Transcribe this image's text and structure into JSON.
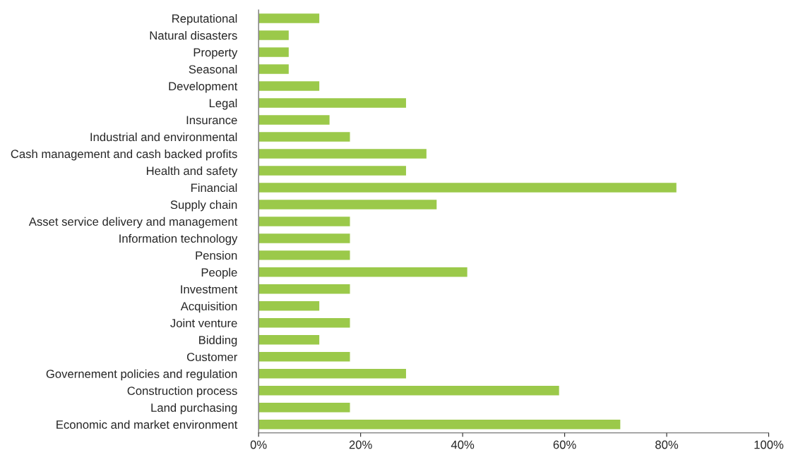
{
  "chart_data": {
    "type": "bar",
    "orientation": "horizontal",
    "categories": [
      "Reputational",
      "Natural disasters",
      "Property",
      "Seasonal",
      "Development",
      "Legal",
      "Insurance",
      "Industrial and environmental",
      "Cash management and cash backed profits",
      "Health and safety",
      "Financial",
      "Supply chain",
      "Asset service delivery and management",
      "Information technology",
      "Pension",
      "People",
      "Investment",
      "Acquisition",
      "Joint venture",
      "Bidding",
      "Customer",
      "Governement policies and regulation",
      "Construction process",
      "Land purchasing",
      "Economic and market environment"
    ],
    "values": [
      12,
      6,
      6,
      6,
      12,
      29,
      14,
      18,
      33,
      29,
      82,
      35,
      18,
      18,
      18,
      41,
      18,
      12,
      18,
      12,
      18,
      29,
      59,
      18,
      71
    ],
    "color": "#9bc94a",
    "xlim": [
      0,
      100
    ],
    "xticks": [
      {
        "value": 0,
        "label": "0%"
      },
      {
        "value": 20,
        "label": "20%"
      },
      {
        "value": 40,
        "label": "40%"
      },
      {
        "value": 60,
        "label": "60%"
      },
      {
        "value": 80,
        "label": "80%"
      },
      {
        "value": 100,
        "label": "100%"
      }
    ],
    "grid": false,
    "legend": false
  }
}
